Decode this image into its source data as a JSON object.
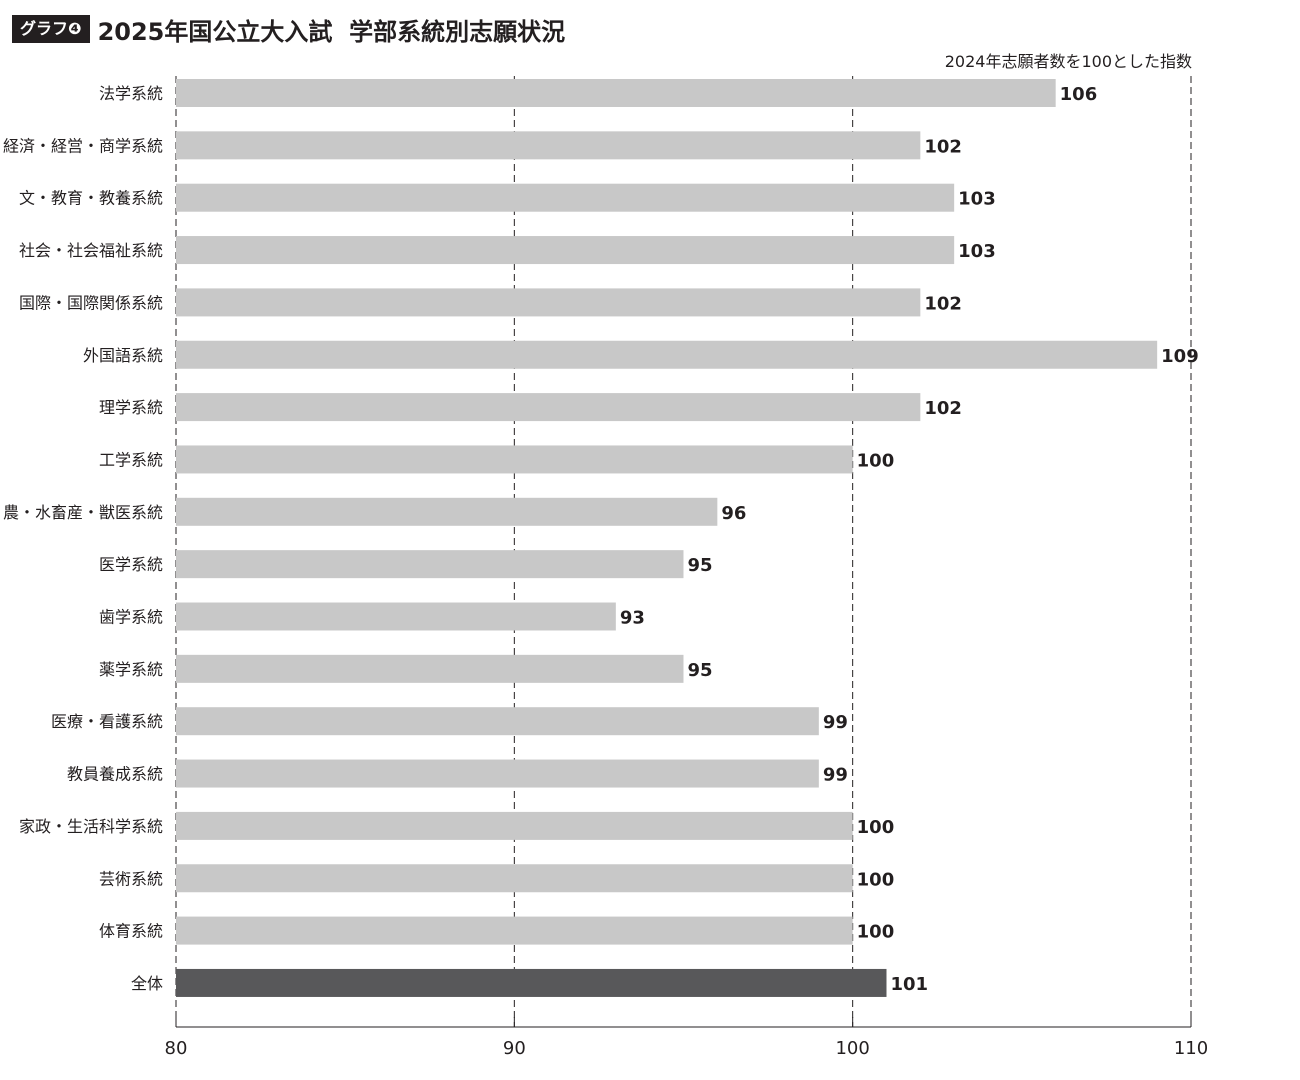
{
  "header": {
    "badge": "グラフ❹",
    "title": "2025年国公立大入試  学部系統別志願状況"
  },
  "chart_data": {
    "type": "bar",
    "orientation": "horizontal",
    "title": "2025年国公立大入試  学部系統別志願状況",
    "unit_note": "2024年志願者数を100とした指数",
    "categories": [
      "法学系統",
      "経済・経営・商学系統",
      "文・教育・教養系統",
      "社会・社会福祉系統",
      "国際・国際関係系統",
      "外国語系統",
      "理学系統",
      "工学系統",
      "農・水畜産・獣医系統",
      "医学系統",
      "歯学系統",
      "薬学系統",
      "医療・看護系統",
      "教員養成系統",
      "家政・生活科学系統",
      "芸術系統",
      "体育系統",
      "全体"
    ],
    "values": [
      106,
      102,
      103,
      103,
      102,
      109,
      102,
      100,
      96,
      95,
      93,
      95,
      99,
      99,
      100,
      100,
      100,
      101
    ],
    "value_labels": [
      "106",
      "102",
      "103",
      "103",
      "102",
      "109",
      "102",
      "100",
      "96",
      "95",
      "93",
      "95",
      "99",
      "99",
      "100",
      "100",
      "100",
      "101"
    ],
    "xlim": [
      80,
      110
    ],
    "xticks": [
      80,
      90,
      100,
      110
    ],
    "xtick_labels": [
      "80",
      "90",
      "100",
      "110"
    ],
    "grid": "vertical dashed",
    "colors": {
      "bar": "#c8c8c8",
      "highlight_bar": "#58585a",
      "highlight_category": "全体",
      "text": "#231f20",
      "grid": "#231f20"
    }
  }
}
